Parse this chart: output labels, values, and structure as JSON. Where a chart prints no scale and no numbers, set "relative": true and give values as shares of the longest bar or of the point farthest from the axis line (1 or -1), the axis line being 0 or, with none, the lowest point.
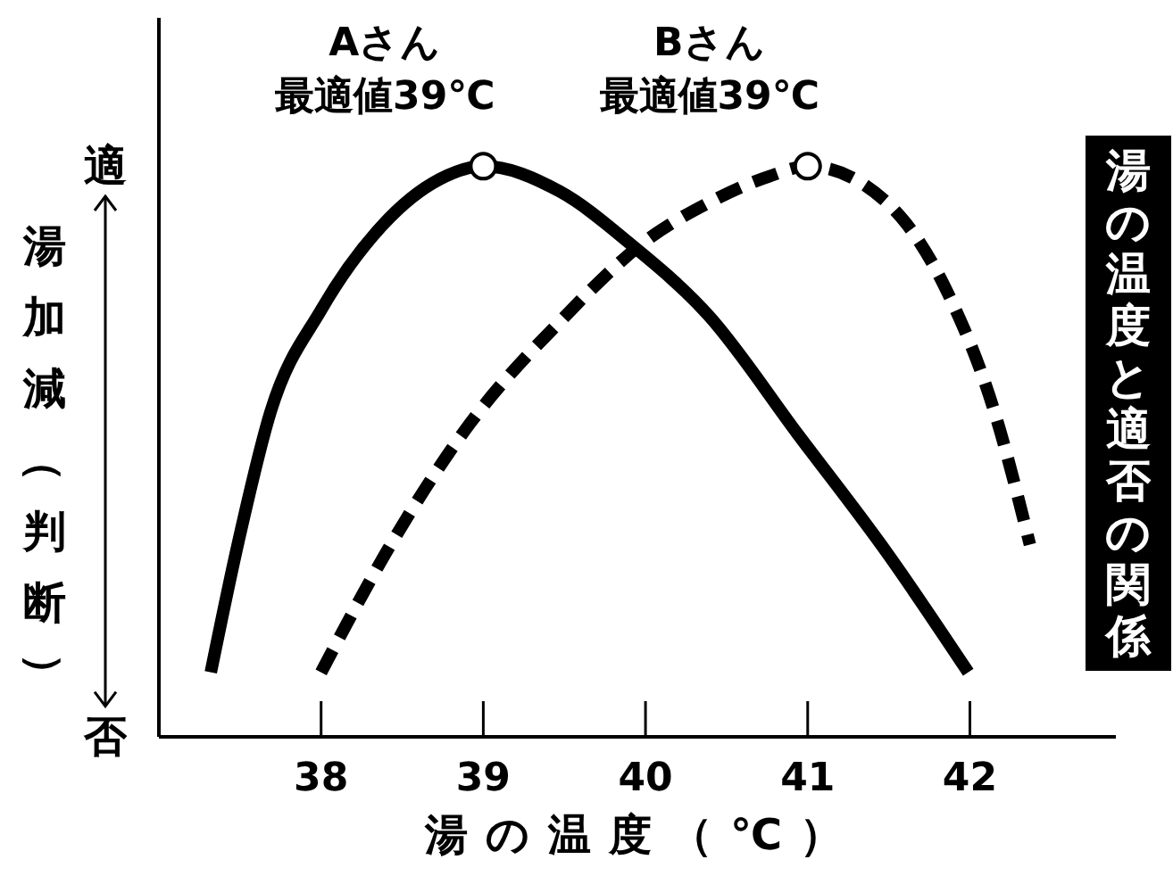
{
  "chart_data": {
    "type": "line",
    "title": "湯の温度と適否の関係",
    "xlabel": "湯の温度（℃）",
    "ylabel": "湯加減（判断）",
    "relative": true,
    "xlim": [
      37,
      42.9
    ],
    "xticks": [
      38,
      39,
      40,
      41,
      42
    ],
    "marker": "none",
    "series": [
      {
        "color": "#000000",
        "line_style": "solid",
        "x": [
          37.32,
          37.49,
          37.69,
          38.0,
          38.37,
          38.73,
          39.0,
          39.47,
          39.91,
          40.39,
          40.94,
          41.49,
          41.99
        ],
        "values": [
          0.113,
          0.342,
          0.571,
          0.748,
          0.894,
          0.977,
          1.0,
          0.956,
          0.863,
          0.738,
          0.53,
          0.322,
          0.113
        ]
      },
      {
        "color": "#000000",
        "line_style": "dashed",
        "x": [
          38.0,
          38.44,
          38.92,
          39.47,
          40.02,
          40.39,
          40.76,
          41.0,
          41.49,
          41.86,
          42.15,
          42.37
        ],
        "values": [
          0.113,
          0.342,
          0.55,
          0.727,
          0.873,
          0.936,
          0.982,
          1.0,
          0.936,
          0.78,
          0.571,
          0.337
        ]
      }
    ],
    "annotations": [
      {
        "text": "Aさん最適値39℃",
        "x": 39,
        "y": 1
      },
      {
        "text": "Bさん最適値39℃",
        "x": 41,
        "y": 1
      },
      "適",
      "否"
    ]
  }
}
